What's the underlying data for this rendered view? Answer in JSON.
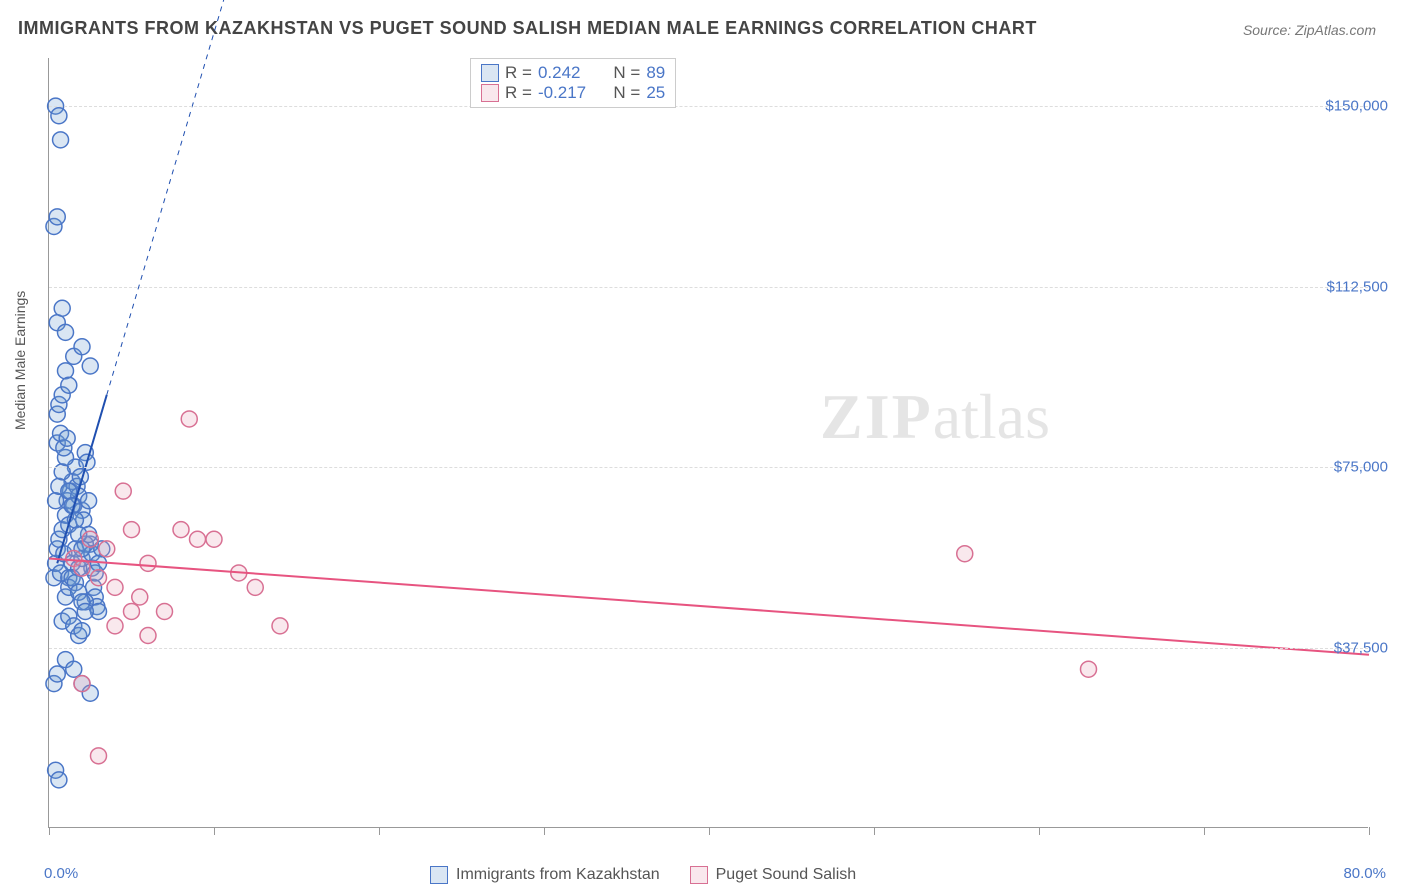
{
  "title": "IMMIGRANTS FROM KAZAKHSTAN VS PUGET SOUND SALISH MEDIAN MALE EARNINGS CORRELATION CHART",
  "source": "Source: ZipAtlas.com",
  "watermark_zip": "ZIP",
  "watermark_atlas": "atlas",
  "ylabel": "Median Male Earnings",
  "chart": {
    "type": "scatter",
    "background_color": "#ffffff",
    "grid_color": "#dddddd",
    "axis_color": "#999999",
    "marker_radius": 8,
    "marker_stroke_width": 1.5,
    "marker_fill_opacity": 0.25,
    "xlim": [
      0,
      80
    ],
    "ylim": [
      0,
      160000
    ],
    "xtick_positions_pct": [
      0,
      10,
      20,
      30,
      40,
      50,
      60,
      70,
      80
    ],
    "xtick_labels": {
      "start": "0.0%",
      "end": "80.0%"
    },
    "ytick_values": [
      37500,
      75000,
      112500,
      150000
    ],
    "ytick_labels": [
      "$37,500",
      "$75,000",
      "$112,500",
      "$150,000"
    ],
    "series": [
      {
        "name": "Immigrants from Kazakhstan",
        "color": "#6b9bd1",
        "stroke": "#4a76c7",
        "R": "0.242",
        "N": "89",
        "trend": {
          "x1": 0.5,
          "y1": 55000,
          "x2": 3.5,
          "y2": 90000,
          "dashed_extend": true,
          "dash_x2": 13,
          "dash_y2": 200000,
          "color": "#1f4fb0",
          "width": 2
        },
        "points": [
          [
            0.3,
            52000
          ],
          [
            0.4,
            55000
          ],
          [
            0.5,
            58000
          ],
          [
            0.6,
            60000
          ],
          [
            0.7,
            53000
          ],
          [
            0.8,
            62000
          ],
          [
            0.9,
            57000
          ],
          [
            1.0,
            65000
          ],
          [
            1.1,
            68000
          ],
          [
            1.2,
            63000
          ],
          [
            1.3,
            70000
          ],
          [
            1.4,
            72000
          ],
          [
            1.5,
            67000
          ],
          [
            1.6,
            75000
          ],
          [
            1.7,
            71000
          ],
          [
            1.8,
            69000
          ],
          [
            1.9,
            73000
          ],
          [
            2.0,
            66000
          ],
          [
            2.1,
            64000
          ],
          [
            2.2,
            78000
          ],
          [
            2.3,
            76000
          ],
          [
            2.4,
            68000
          ],
          [
            2.5,
            59000
          ],
          [
            2.6,
            54000
          ],
          [
            2.7,
            50000
          ],
          [
            2.8,
            48000
          ],
          [
            2.9,
            46000
          ],
          [
            3.0,
            45000
          ],
          [
            0.8,
            43000
          ],
          [
            1.2,
            44000
          ],
          [
            1.5,
            42000
          ],
          [
            1.8,
            40000
          ],
          [
            2.0,
            41000
          ],
          [
            2.2,
            47000
          ],
          [
            0.5,
            86000
          ],
          [
            0.6,
            88000
          ],
          [
            0.8,
            90000
          ],
          [
            1.0,
            95000
          ],
          [
            1.2,
            92000
          ],
          [
            1.5,
            98000
          ],
          [
            2.0,
            100000
          ],
          [
            2.5,
            96000
          ],
          [
            1.0,
            35000
          ],
          [
            1.5,
            33000
          ],
          [
            2.0,
            30000
          ],
          [
            2.5,
            28000
          ],
          [
            0.5,
            105000
          ],
          [
            0.8,
            108000
          ],
          [
            1.0,
            103000
          ],
          [
            0.3,
            125000
          ],
          [
            0.5,
            127000
          ],
          [
            0.4,
            150000
          ],
          [
            0.6,
            148000
          ],
          [
            0.7,
            143000
          ],
          [
            1.2,
            52000
          ],
          [
            1.4,
            55000
          ],
          [
            1.6,
            58000
          ],
          [
            1.8,
            54000
          ],
          [
            2.0,
            56000
          ],
          [
            2.2,
            59000
          ],
          [
            2.4,
            61000
          ],
          [
            2.6,
            57000
          ],
          [
            2.8,
            53000
          ],
          [
            3.0,
            55000
          ],
          [
            3.2,
            58000
          ],
          [
            0.4,
            68000
          ],
          [
            0.6,
            71000
          ],
          [
            0.8,
            74000
          ],
          [
            1.0,
            77000
          ],
          [
            1.2,
            70000
          ],
          [
            1.4,
            67000
          ],
          [
            1.6,
            64000
          ],
          [
            1.8,
            61000
          ],
          [
            2.0,
            58000
          ],
          [
            0.5,
            80000
          ],
          [
            0.7,
            82000
          ],
          [
            0.9,
            79000
          ],
          [
            1.1,
            81000
          ],
          [
            0.3,
            30000
          ],
          [
            0.5,
            32000
          ],
          [
            0.4,
            12000
          ],
          [
            0.6,
            10000
          ],
          [
            1.0,
            48000
          ],
          [
            1.2,
            50000
          ],
          [
            1.4,
            52000
          ],
          [
            1.6,
            51000
          ],
          [
            1.8,
            49000
          ],
          [
            2.0,
            47000
          ],
          [
            2.2,
            45000
          ]
        ]
      },
      {
        "name": "Puget Sound Salish",
        "color": "#e8a5b8",
        "stroke": "#d87093",
        "R": "-0.217",
        "N": "25",
        "trend": {
          "x1": 0,
          "y1": 56000,
          "x2": 80,
          "y2": 36000,
          "dashed_extend": false,
          "color": "#e75480",
          "width": 2
        },
        "points": [
          [
            1.5,
            56000
          ],
          [
            2.0,
            54000
          ],
          [
            2.5,
            60000
          ],
          [
            3.0,
            52000
          ],
          [
            3.5,
            58000
          ],
          [
            4.0,
            50000
          ],
          [
            5.0,
            62000
          ],
          [
            5.5,
            48000
          ],
          [
            6.0,
            55000
          ],
          [
            7.0,
            45000
          ],
          [
            8.0,
            62000
          ],
          [
            9.0,
            60000
          ],
          [
            10.0,
            60000
          ],
          [
            11.5,
            53000
          ],
          [
            12.5,
            50000
          ],
          [
            14.0,
            42000
          ],
          [
            55.5,
            57000
          ],
          [
            63.0,
            33000
          ],
          [
            2.0,
            30000
          ],
          [
            3.0,
            15000
          ],
          [
            4.0,
            42000
          ],
          [
            5.0,
            45000
          ],
          [
            6.0,
            40000
          ],
          [
            8.5,
            85000
          ],
          [
            4.5,
            70000
          ]
        ]
      }
    ]
  },
  "legend_labels": {
    "r_prefix": "R = ",
    "n_prefix": "N = "
  }
}
